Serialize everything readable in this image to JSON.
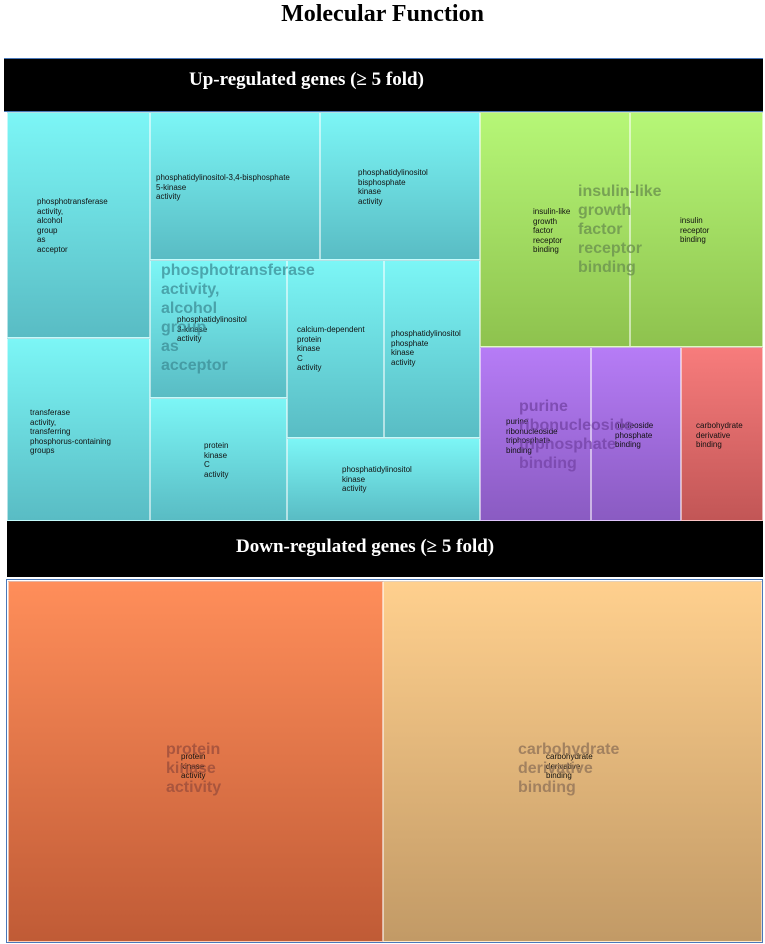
{
  "title": "Molecular Function",
  "upregulated": {
    "banner": "Up-regulated genes (≥ 5 fold)",
    "groups": {
      "phosphotransferase": "phosphotransferase\nactivity,\nalcohol\ngroup\nas\nacceptor",
      "insulin_like": "insulin-like\ngrowth\nfactor\nreceptor\nbinding",
      "purine": "purine\nribonucleoside\ntriphosphate\nbinding"
    },
    "tiles": {
      "phosphotransferase_activity": "phosphotransferase\nactivity,\nalcohol\ngroup\nas\nacceptor",
      "transferase_activity": "transferase\nactivity,\ntransferring\nphosphorus-containing\ngroups",
      "pip2_5_kinase": "phosphatidylinositol-3,4-bisphosphate\n5-kinase\nactivity",
      "pi_bisphosphate_kinase": "phosphatidylinositol\nbisphosphate\nkinase\nactivity",
      "pi_3_kinase": "phosphatidylinositol\n3-kinase\nactivity",
      "calcium_pkc": "calcium-dependent\nprotein\nkinase\nC\nactivity",
      "pi_phosphate_kinase": "phosphatidylinositol\nphosphate\nkinase\nactivity",
      "pkc_activity": "protein\nkinase\nC\nactivity",
      "pi_kinase": "phosphatidylinositol\nkinase\nactivity",
      "igf_receptor_binding": "insulin-like\ngrowth\nfactor\nreceptor\nbinding",
      "insulin_receptor_binding": "insulin\nreceptor\nbinding",
      "purine_binding": "purine\nribonucleoside\ntriphosphate\nbinding",
      "nucleoside_phosphate_binding": "nucleoside\nphosphate\nbinding",
      "carbohydrate_derivative_binding": "carbohydrate\nderivative\nbinding"
    }
  },
  "downregulated": {
    "banner": "Down-regulated genes (≥ 5 fold)",
    "groups": {
      "protein_kinase": "protein\nkinase\nactivity",
      "carbohydrate": "carbohydrate\nderivative\nbinding"
    },
    "tiles": {
      "protein_kinase_activity": "protein\nkinase\nactivity",
      "carbohydrate_derivative_binding": "carbohydrate\nderivative\nbinding"
    }
  },
  "colors": {
    "cyan": "#7cf6f6",
    "green": "#b6f777",
    "purple": "#b67cf6",
    "red": "#f77c7c",
    "orange": "#ff8e5a",
    "tan": "#ffd08e"
  }
}
